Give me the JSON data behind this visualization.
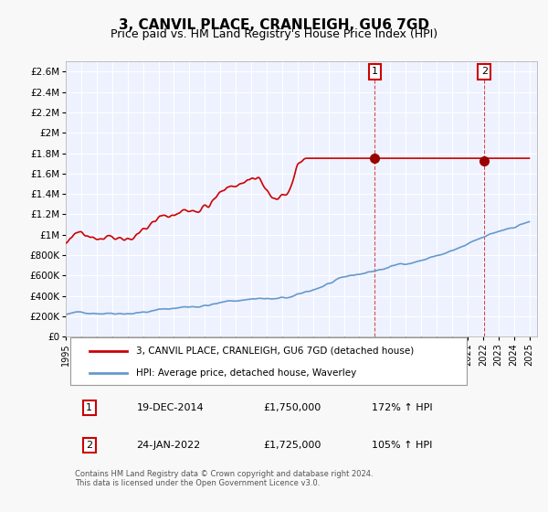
{
  "title": "3, CANVIL PLACE, CRANLEIGH, GU6 7GD",
  "subtitle": "Price paid vs. HM Land Registry's House Price Index (HPI)",
  "ylabel": "",
  "background_color": "#f0f4ff",
  "plot_bg_color": "#eef2ff",
  "grid_color": "#ffffff",
  "red_line_color": "#cc0000",
  "blue_line_color": "#6699cc",
  "ylim": [
    0,
    2700000
  ],
  "xlim_start": 1995.0,
  "xlim_end": 2025.5,
  "sale1_x": 2014.97,
  "sale1_y": 1750000,
  "sale1_label": "1",
  "sale1_date": "19-DEC-2014",
  "sale1_price": "£1,750,000",
  "sale1_hpi": "172% ↑ HPI",
  "sale2_x": 2022.07,
  "sale2_y": 1725000,
  "sale2_label": "2",
  "sale2_date": "24-JAN-2022",
  "sale2_price": "£1,725,000",
  "sale2_hpi": "105% ↑ HPI",
  "legend_red_label": "3, CANVIL PLACE, CRANLEIGH, GU6 7GD (detached house)",
  "legend_blue_label": "HPI: Average price, detached house, Waverley",
  "footer": "Contains HM Land Registry data © Crown copyright and database right 2024.\nThis data is licensed under the Open Government Licence v3.0.",
  "yticks": [
    0,
    200000,
    400000,
    600000,
    800000,
    1000000,
    1200000,
    1400000,
    1600000,
    1800000,
    2000000,
    2200000,
    2400000,
    2600000
  ],
  "ytick_labels": [
    "£0",
    "£200K",
    "£400K",
    "£600K",
    "£800K",
    "£1M",
    "£1.2M",
    "£1.4M",
    "£1.6M",
    "£1.8M",
    "£2M",
    "£2.2M",
    "£2.4M",
    "£2.6M"
  ]
}
